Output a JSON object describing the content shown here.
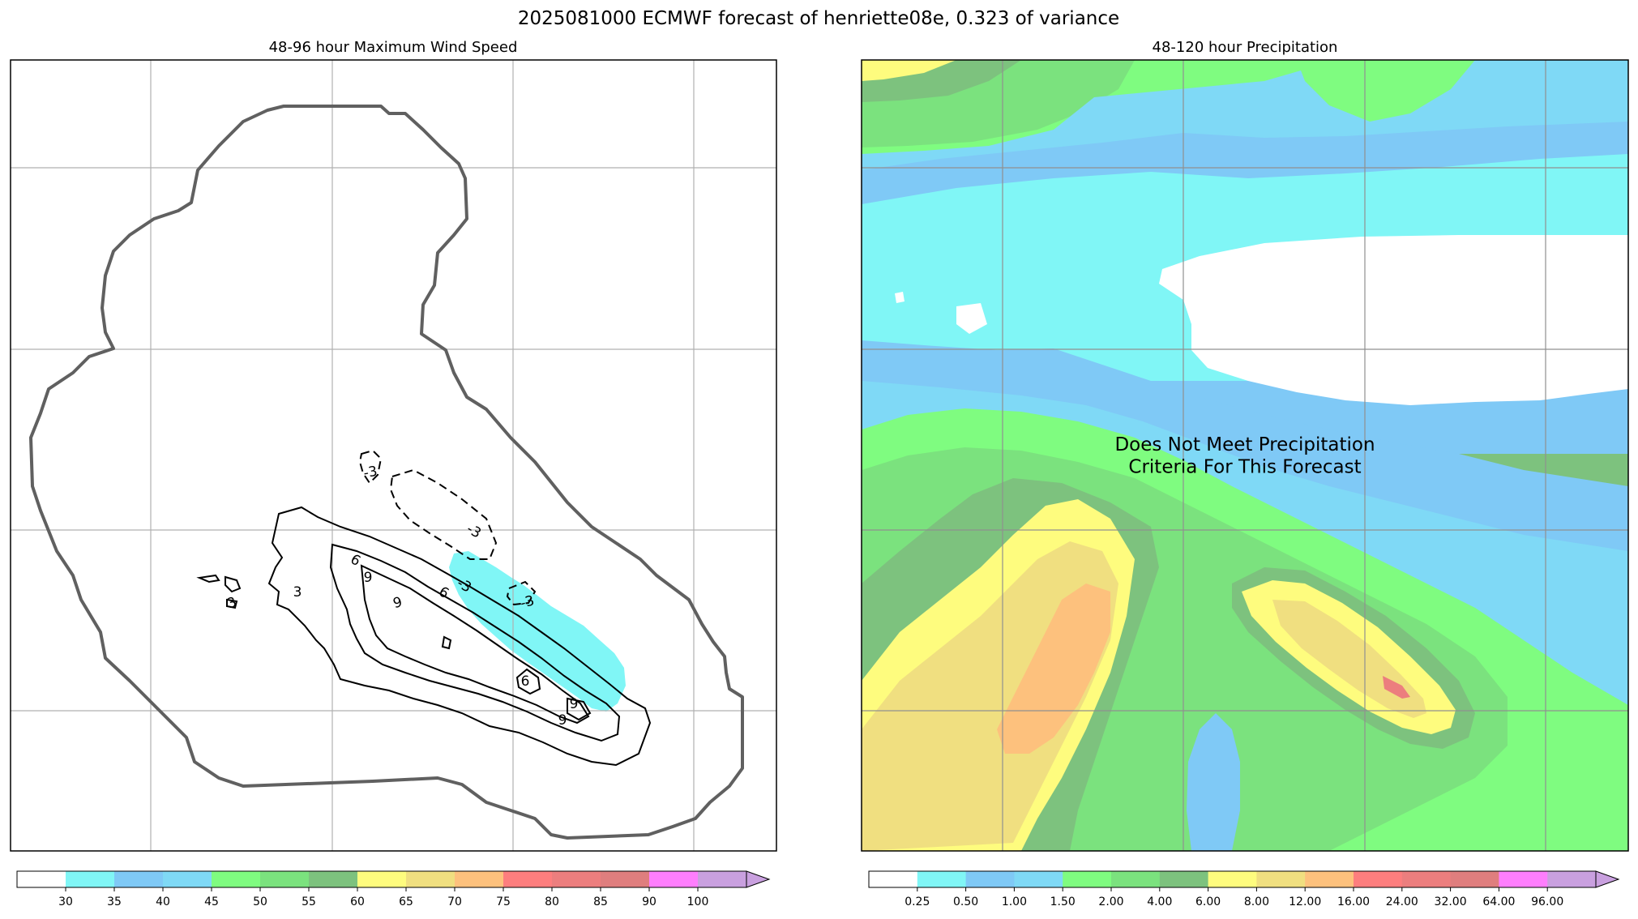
{
  "suptitle": "2025081000 ECMWF forecast of henriette08e, 0.323 of variance",
  "chart_data": [
    {
      "type": "contour",
      "title": "48-96 hour Maximum Wind Speed",
      "xlabel": "",
      "ylabel": "",
      "grid": true,
      "filled_levels": [
        30,
        35
      ],
      "contour_labels": [
        "-3",
        "-3",
        "-3",
        "-3",
        "3",
        "3",
        "6",
        "6",
        "6",
        "9",
        "9",
        "9",
        "9"
      ],
      "colorbar": {
        "colors": [
          "#ffffff",
          "#80f6f6",
          "#7fc9f6",
          "#7fd9f6",
          "#7ffc80",
          "#7be27e",
          "#7dc27e",
          "#fefc7e",
          "#f0df80",
          "#fdc17d",
          "#fd7e7e",
          "#ec7e7e",
          "#df7e7e",
          "#fe7efd",
          "#c9a0df"
        ],
        "tick_labels": [
          "30",
          "35",
          "40",
          "45",
          "50",
          "55",
          "60",
          "65",
          "70",
          "75",
          "80",
          "85",
          "90",
          "100"
        ],
        "extend": "max"
      }
    },
    {
      "type": "contourf",
      "title": "48-120 hour Precipitation",
      "xlabel": "",
      "ylabel": "",
      "grid": true,
      "annotation": "Does Not Meet Precipitation\nCriteria For This Forecast",
      "colorbar": {
        "colors": [
          "#ffffff",
          "#80f6f6",
          "#7fc9f6",
          "#7fd9f6",
          "#7ffc80",
          "#7be27e",
          "#7dc27e",
          "#fefc7e",
          "#f0df80",
          "#fdc17d",
          "#fd7e7e",
          "#ec7e7e",
          "#df7e7e",
          "#fe7efd",
          "#c9a0df"
        ],
        "tick_labels": [
          "0.25",
          "0.50",
          "1.00",
          "1.50",
          "2.00",
          "4.00",
          "6.00",
          "8.00",
          "12.00",
          "16.00",
          "24.00",
          "32.00",
          "64.00",
          "96.00"
        ],
        "extend": "max"
      }
    }
  ]
}
